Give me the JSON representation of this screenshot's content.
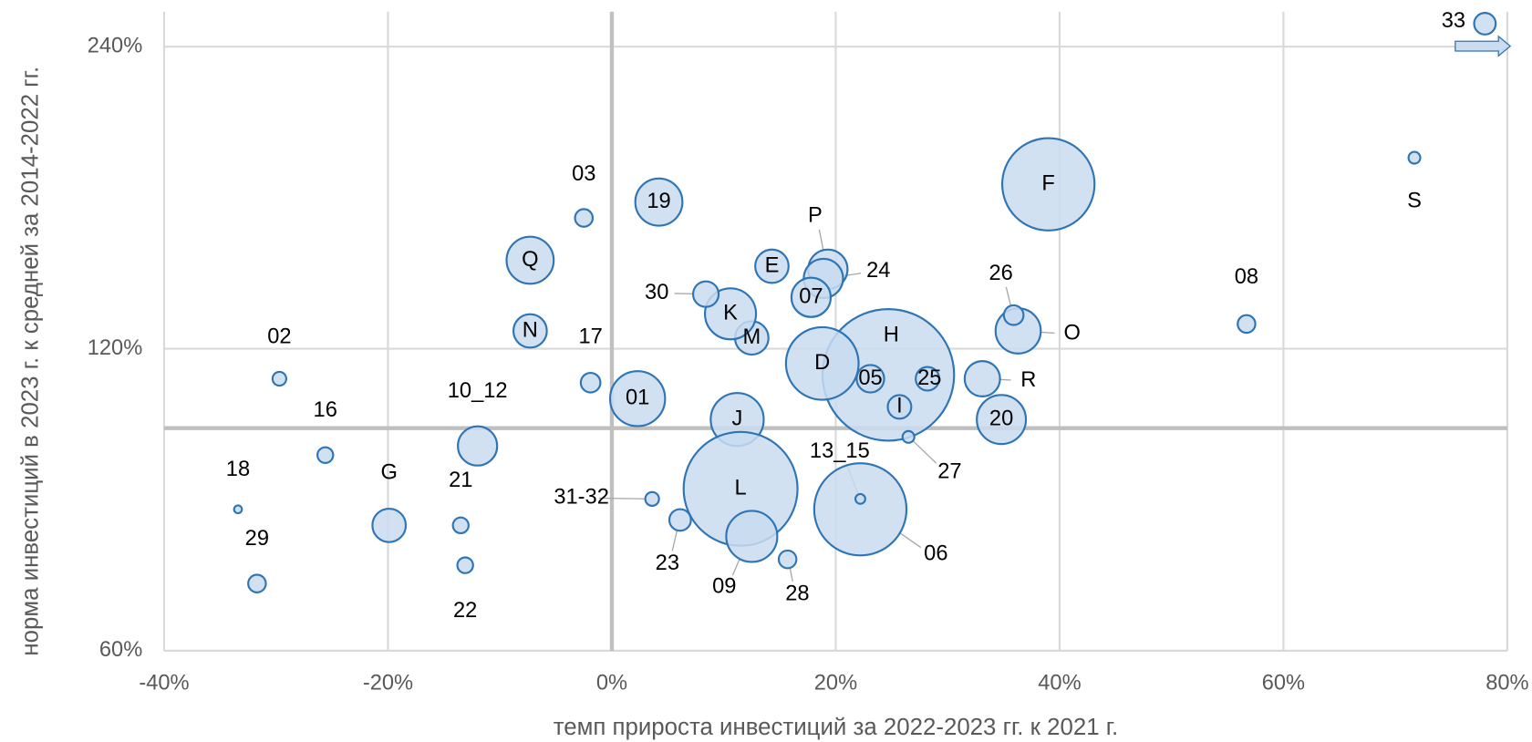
{
  "chart_data": {
    "type": "bubble",
    "x_label": "темп прироста инвестиций за 2022-2023 гг. к 2021 г.",
    "y_label": "норма инвестиций в 2023 г. к средней за 2014-2022 гг.",
    "xlim": [
      -40,
      80
    ],
    "xticks": [
      {
        "value": -40,
        "label": "-40%"
      },
      {
        "value": -20,
        "label": "-20%"
      },
      {
        "value": 0,
        "label": "0%"
      },
      {
        "value": 20,
        "label": "20%"
      },
      {
        "value": 40,
        "label": "40%"
      },
      {
        "value": 60,
        "label": "60%"
      },
      {
        "value": 80,
        "label": "80%"
      }
    ],
    "ylim": [
      60,
      260
    ],
    "ylog": true,
    "yticks": [
      {
        "value": 60,
        "label": "60%"
      },
      {
        "value": 120,
        "label": "120%"
      },
      {
        "value": 240,
        "label": "240%"
      }
    ],
    "grid": true,
    "reference_x": 0,
    "reference_y": 100,
    "color": "#c9dcf0",
    "edge_color": "#2e75b6",
    "points": [
      {
        "label": "33",
        "x": 78,
        "y": 253,
        "size": 121
      },
      {
        "label": "S",
        "x": 71.7,
        "y": 186,
        "size": 36
      },
      {
        "label": "F",
        "x": 39,
        "y": 175,
        "size": 2209
      },
      {
        "label": "08",
        "x": 56.7,
        "y": 127,
        "size": 81
      },
      {
        "label": "O",
        "x": 36.3,
        "y": 125,
        "size": 529
      },
      {
        "label": "26",
        "x": 35.9,
        "y": 129.6,
        "size": 100
      },
      {
        "label": "R",
        "x": 33.1,
        "y": 112,
        "size": 324
      },
      {
        "label": "20",
        "x": 34.8,
        "y": 102,
        "size": 625
      },
      {
        "label": "H",
        "x": 24.7,
        "y": 113,
        "size": 4489
      },
      {
        "label": "I",
        "x": 25.7,
        "y": 105,
        "size": 144
      },
      {
        "label": "25",
        "x": 28.2,
        "y": 112,
        "size": 144
      },
      {
        "label": "05",
        "x": 23.1,
        "y": 112,
        "size": 196
      },
      {
        "label": "D",
        "x": 18.8,
        "y": 116,
        "size": 1369
      },
      {
        "label": "27",
        "x": 26.5,
        "y": 98,
        "size": 36
      },
      {
        "label": "06",
        "x": 22.2,
        "y": 83,
        "size": 2209
      },
      {
        "label": "13_15",
        "x": 22.2,
        "y": 85,
        "size": 25
      },
      {
        "label": "28",
        "x": 15.7,
        "y": 74,
        "size": 81
      },
      {
        "label": "P",
        "x": 19.3,
        "y": 144,
        "size": 400
      },
      {
        "label": "24",
        "x": 18.9,
        "y": 141,
        "size": 400
      },
      {
        "label": "07",
        "x": 17.8,
        "y": 135,
        "size": 400
      },
      {
        "label": "E",
        "x": 14.3,
        "y": 145,
        "size": 289
      },
      {
        "label": "M",
        "x": 12.5,
        "y": 123,
        "size": 289
      },
      {
        "label": "K",
        "x": 10.6,
        "y": 130,
        "size": 676
      },
      {
        "label": "30",
        "x": 8.4,
        "y": 136,
        "size": 169
      },
      {
        "label": "J",
        "x": 11.2,
        "y": 102,
        "size": 729
      },
      {
        "label": "L",
        "x": 11.5,
        "y": 87,
        "size": 3364
      },
      {
        "label": "09",
        "x": 12.5,
        "y": 78,
        "size": 676
      },
      {
        "label": "23",
        "x": 6.1,
        "y": 81,
        "size": 121
      },
      {
        "label": "31-32",
        "x": 3.6,
        "y": 85,
        "size": 49
      },
      {
        "label": "19",
        "x": 4.2,
        "y": 168,
        "size": 576
      },
      {
        "label": "01",
        "x": 2.3,
        "y": 107,
        "size": 784
      },
      {
        "label": "03",
        "x": -2.5,
        "y": 162,
        "size": 81
      },
      {
        "label": "17",
        "x": -1.9,
        "y": 111,
        "size": 100
      },
      {
        "label": "Q",
        "x": -7.3,
        "y": 147,
        "size": 576
      },
      {
        "label": "N",
        "x": -7.3,
        "y": 125,
        "size": 289
      },
      {
        "label": "10_12",
        "x": -12,
        "y": 96,
        "size": 400
      },
      {
        "label": "21",
        "x": -13.5,
        "y": 80,
        "size": 64
      },
      {
        "label": "22",
        "x": -13.1,
        "y": 73,
        "size": 64
      },
      {
        "label": "G",
        "x": -19.9,
        "y": 80,
        "size": 289
      },
      {
        "label": "16",
        "x": -25.6,
        "y": 94,
        "size": 64
      },
      {
        "label": "02",
        "x": -29.7,
        "y": 112,
        "size": 49
      },
      {
        "label": "18",
        "x": -33.4,
        "y": 83,
        "size": 16
      },
      {
        "label": "29",
        "x": -31.7,
        "y": 70,
        "size": 81
      }
    ]
  }
}
